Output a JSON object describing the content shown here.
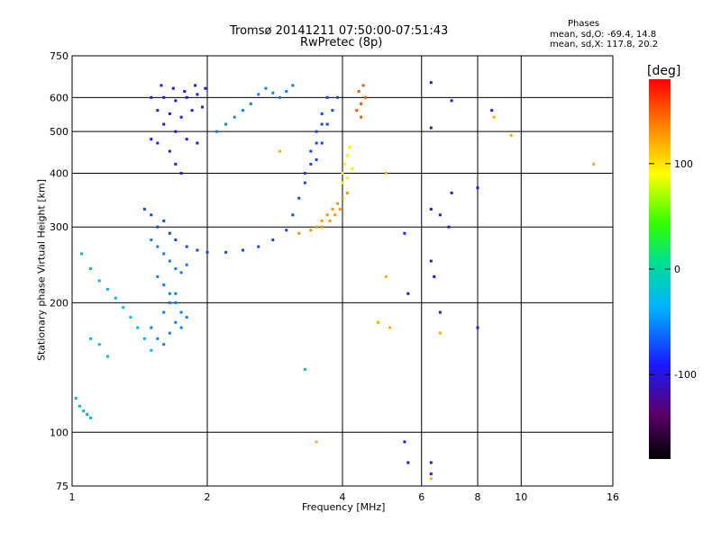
{
  "header": {
    "title_line1": "Tromsø 20141211 07:50:00-07:51:43",
    "title_line2": "RwPretec (8p)",
    "phases_title": "Phases",
    "phases_o": "mean, sd,O: -69.4, 14.8",
    "phases_x": "mean, sd,X: 117.8, 20.2"
  },
  "colorbar": {
    "unit": "[deg]",
    "range": [
      -180,
      180
    ],
    "ticks": [
      100,
      0,
      -100
    ]
  },
  "chart_data": {
    "type": "scatter",
    "xlabel": "Frequency [MHz]",
    "ylabel": "Stationary phase Virtual Height [km]",
    "xscale": "log",
    "yscale": "log",
    "xlim": [
      1,
      16
    ],
    "ylim": [
      75,
      750
    ],
    "xticks": [
      1,
      2,
      4,
      6,
      8,
      10,
      16
    ],
    "yticks": [
      75,
      100,
      200,
      300,
      400,
      500,
      600,
      750
    ],
    "grid": true,
    "series": [
      {
        "mode": "O",
        "phase": -95,
        "points": [
          [
            1.5,
            600
          ],
          [
            1.6,
            600
          ],
          [
            1.7,
            590
          ],
          [
            1.8,
            600
          ],
          [
            1.9,
            610
          ],
          [
            1.55,
            560
          ],
          [
            1.65,
            550
          ],
          [
            1.75,
            540
          ],
          [
            1.85,
            560
          ],
          [
            1.95,
            570
          ],
          [
            1.6,
            520
          ],
          [
            1.7,
            500
          ],
          [
            1.8,
            480
          ],
          [
            1.9,
            470
          ],
          [
            1.65,
            450
          ],
          [
            1.7,
            420
          ],
          [
            1.75,
            400
          ],
          [
            1.5,
            480
          ],
          [
            1.55,
            470
          ],
          [
            1.58,
            640
          ],
          [
            1.68,
            630
          ],
          [
            1.78,
            620
          ],
          [
            1.88,
            640
          ],
          [
            1.98,
            630
          ]
        ]
      },
      {
        "mode": "O",
        "phase": -75,
        "points": [
          [
            1.45,
            330
          ],
          [
            1.5,
            320
          ],
          [
            1.55,
            300
          ],
          [
            1.6,
            310
          ],
          [
            1.65,
            290
          ],
          [
            1.7,
            280
          ],
          [
            1.8,
            270
          ],
          [
            1.9,
            265
          ],
          [
            2.0,
            262
          ],
          [
            2.2,
            262
          ],
          [
            2.4,
            265
          ],
          [
            2.6,
            270
          ],
          [
            2.8,
            280
          ],
          [
            3.0,
            295
          ],
          [
            3.1,
            320
          ],
          [
            3.2,
            350
          ],
          [
            3.3,
            400
          ],
          [
            3.4,
            450
          ],
          [
            3.5,
            500
          ],
          [
            3.6,
            550
          ],
          [
            3.7,
            600
          ],
          [
            3.5,
            430
          ],
          [
            3.6,
            470
          ],
          [
            3.7,
            520
          ],
          [
            3.8,
            560
          ],
          [
            3.9,
            600
          ],
          [
            3.3,
            380
          ],
          [
            3.4,
            420
          ],
          [
            3.5,
            470
          ],
          [
            3.6,
            520
          ]
        ]
      },
      {
        "mode": "O",
        "phase": -55,
        "points": [
          [
            1.5,
            280
          ],
          [
            1.55,
            270
          ],
          [
            1.6,
            260
          ],
          [
            1.65,
            250
          ],
          [
            1.7,
            240
          ],
          [
            1.75,
            235
          ],
          [
            1.8,
            245
          ],
          [
            1.55,
            230
          ],
          [
            1.6,
            220
          ],
          [
            1.65,
            210
          ],
          [
            1.7,
            200
          ],
          [
            1.75,
            190
          ],
          [
            1.8,
            185
          ],
          [
            1.5,
            175
          ],
          [
            1.55,
            165
          ],
          [
            1.6,
            160
          ],
          [
            1.65,
            170
          ],
          [
            1.7,
            180
          ],
          [
            1.75,
            175
          ],
          [
            1.6,
            190
          ],
          [
            1.65,
            200
          ],
          [
            1.7,
            210
          ],
          [
            2.1,
            500
          ],
          [
            2.2,
            520
          ],
          [
            2.3,
            540
          ],
          [
            2.4,
            560
          ],
          [
            2.5,
            580
          ],
          [
            2.6,
            610
          ],
          [
            2.7,
            630
          ],
          [
            2.8,
            615
          ],
          [
            2.9,
            600
          ],
          [
            3.0,
            620
          ],
          [
            3.1,
            640
          ]
        ]
      },
      {
        "mode": "O",
        "phase": -35,
        "points": [
          [
            1.05,
            260
          ],
          [
            1.1,
            240
          ],
          [
            1.15,
            225
          ],
          [
            1.2,
            215
          ],
          [
            1.25,
            205
          ],
          [
            1.3,
            195
          ],
          [
            1.35,
            185
          ],
          [
            1.4,
            175
          ],
          [
            1.45,
            165
          ],
          [
            1.5,
            155
          ],
          [
            1.02,
            120
          ],
          [
            1.04,
            115
          ],
          [
            1.06,
            112
          ],
          [
            1.08,
            110
          ],
          [
            1.1,
            108
          ],
          [
            3.3,
            140
          ],
          [
            1.1,
            165
          ],
          [
            1.15,
            160
          ],
          [
            1.2,
            150
          ]
        ]
      },
      {
        "mode": "X",
        "phase": 130,
        "points": [
          [
            3.2,
            290
          ],
          [
            3.4,
            295
          ],
          [
            3.5,
            300
          ],
          [
            3.6,
            310
          ],
          [
            3.7,
            320
          ],
          [
            3.8,
            330
          ],
          [
            3.9,
            340
          ],
          [
            4.0,
            350
          ],
          [
            4.1,
            360
          ],
          [
            3.6,
            300
          ],
          [
            3.75,
            310
          ],
          [
            3.85,
            320
          ],
          [
            3.95,
            330
          ]
        ]
      },
      {
        "mode": "X",
        "phase": 95,
        "points": [
          [
            4.0,
            400
          ],
          [
            4.05,
            420
          ],
          [
            4.1,
            440
          ],
          [
            4.15,
            460
          ],
          [
            4.0,
            380
          ],
          [
            4.1,
            390
          ],
          [
            4.2,
            410
          ]
        ]
      },
      {
        "mode": "X",
        "phase": 150,
        "points": [
          [
            4.3,
            560
          ],
          [
            4.4,
            580
          ],
          [
            4.5,
            600
          ],
          [
            4.35,
            620
          ],
          [
            4.45,
            640
          ],
          [
            4.4,
            540
          ]
        ]
      },
      {
        "mode": "noise",
        "phase": -100,
        "points": [
          [
            6.3,
            650
          ],
          [
            6.3,
            510
          ],
          [
            6.3,
            330
          ],
          [
            6.6,
            320
          ],
          [
            6.9,
            300
          ],
          [
            6.3,
            250
          ],
          [
            6.4,
            230
          ],
          [
            8.6,
            560
          ],
          [
            7.0,
            590
          ],
          [
            7.0,
            360
          ],
          [
            8.0,
            370
          ],
          [
            5.5,
            290
          ],
          [
            5.6,
            210
          ],
          [
            6.6,
            190
          ],
          [
            8.0,
            175
          ],
          [
            5.5,
            95
          ],
          [
            5.6,
            85
          ],
          [
            6.3,
            85
          ],
          [
            6.3,
            80
          ]
        ]
      },
      {
        "mode": "noise",
        "phase": 120,
        "points": [
          [
            2.9,
            450
          ],
          [
            5.0,
            400
          ],
          [
            4.8,
            180
          ],
          [
            5.1,
            175
          ],
          [
            6.6,
            170
          ],
          [
            8.7,
            540
          ],
          [
            9.5,
            490
          ],
          [
            14.5,
            420
          ],
          [
            3.5,
            95
          ],
          [
            5.0,
            230
          ],
          [
            6.3,
            78
          ]
        ]
      }
    ]
  }
}
